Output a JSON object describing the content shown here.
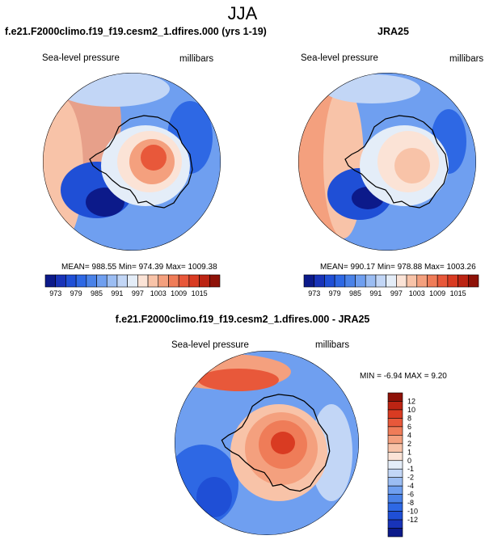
{
  "season": "JJA",
  "colors": {
    "neg": [
      "#0c1a8a",
      "#1833b8",
      "#1f4fd6",
      "#2e68e4",
      "#4a82e8",
      "#6f9ff0",
      "#9bbdf3",
      "#c2d6f6",
      "#e4edf8"
    ],
    "pos": [
      "#fbe3d6",
      "#f8c3a8",
      "#f4a07e",
      "#ef7c58",
      "#e8583a",
      "#d93b22",
      "#bc2413",
      "#8e1208"
    ],
    "coast": "#000000"
  },
  "panels": [
    {
      "title": "f.e21.F2000climo.f19_f19.cesm2_1.dfires.000 (yrs 1-19)",
      "variable": "Sea-level pressure",
      "units": "millibars",
      "stats": "MEAN= 988.55  Min= 974.39  Max= 1009.38",
      "colorbar_ticks": [
        "973",
        "979",
        "985",
        "991",
        "997",
        "1003",
        "1009",
        "1015"
      ]
    },
    {
      "title": "JRA25",
      "variable": "Sea-level pressure",
      "units": "millibars",
      "stats": "MEAN= 990.17  Min= 978.88  Max= 1003.26",
      "colorbar_ticks": [
        "973",
        "979",
        "985",
        "991",
        "997",
        "1003",
        "1009",
        "1015"
      ]
    },
    {
      "title": "f.e21.F2000climo.f19_f19.cesm2_1.dfires.000 - JRA25",
      "variable": "Sea-level pressure",
      "units": "millibars",
      "stats": "MIN =  -6.94 MAX =   9.20",
      "colorbar_ticks": [
        "12",
        "10",
        "8",
        "6",
        "4",
        "2",
        "1",
        "0",
        "-1",
        "-2",
        "-4",
        "-6",
        "-8",
        "-10",
        "-12"
      ]
    }
  ]
}
